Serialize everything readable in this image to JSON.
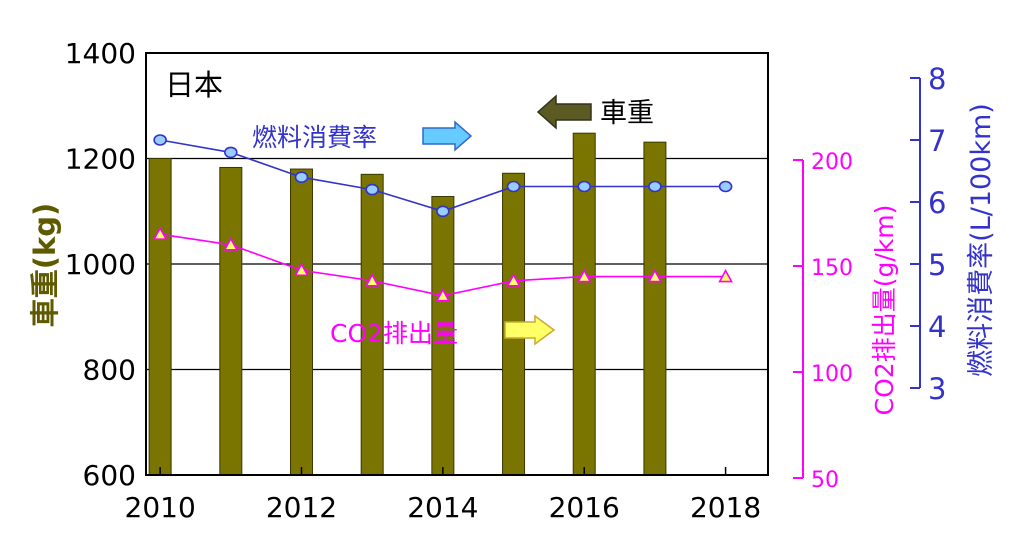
{
  "chart_data": {
    "type": "bar",
    "panel_label": "日本",
    "x": [
      2010,
      2011,
      2012,
      2013,
      2014,
      2015,
      2016,
      2017,
      2018
    ],
    "x_ticks": [
      "2010",
      "2012",
      "2014",
      "2016",
      "2018"
    ],
    "xlim": [
      2009.8,
      2018.6
    ],
    "axes": {
      "weight": {
        "label": "車重(kg)",
        "ylim": [
          600,
          1400
        ],
        "ticks": [
          "600",
          "800",
          "1000",
          "1200",
          "1400"
        ],
        "position": "left"
      },
      "co2": {
        "label": "CO2排出量(g/km)",
        "ylim": [
          50,
          200
        ],
        "ticks": [
          "50",
          "100",
          "150",
          "200"
        ],
        "position": "right-inner"
      },
      "fuel": {
        "label": "燃料消費率(L/100km)",
        "ylim": [
          3,
          8
        ],
        "ticks": [
          "3",
          "4",
          "5",
          "6",
          "7",
          "8"
        ],
        "position": "right-outer"
      }
    },
    "grid": true,
    "series": [
      {
        "key": "weight",
        "name": "車重",
        "type": "bar",
        "axis": "weight",
        "values": [
          1200,
          1183,
          1180,
          1170,
          1128,
          1172,
          1248,
          1231,
          null
        ]
      },
      {
        "key": "fuel",
        "name": "燃料消費率",
        "type": "line",
        "axis": "fuel",
        "marker": "circle",
        "values": [
          7.0,
          6.8,
          6.4,
          6.2,
          5.85,
          6.25,
          6.25,
          6.25,
          6.25
        ]
      },
      {
        "key": "co2",
        "name": "CO2排出量",
        "type": "line",
        "axis": "co2",
        "marker": "triangle",
        "values": [
          165,
          160,
          148,
          143,
          136,
          143,
          145,
          145,
          145
        ]
      }
    ],
    "colors": {
      "bar": "#7a7400",
      "bar_stroke": "#3a3800",
      "fuel": "#3333cc",
      "fuel_marker": "#99ccff",
      "co2": "#ff00ff",
      "co2_marker": "#ffff66",
      "weight_text": "#5f5a00",
      "grid": "#000000"
    },
    "annotations": {
      "weight": {
        "text": "車重",
        "arrow": "left"
      },
      "fuel": {
        "text": "燃料消費率",
        "arrow": "right"
      },
      "co2": {
        "text": "CO2排出量",
        "arrow": "right"
      }
    }
  }
}
